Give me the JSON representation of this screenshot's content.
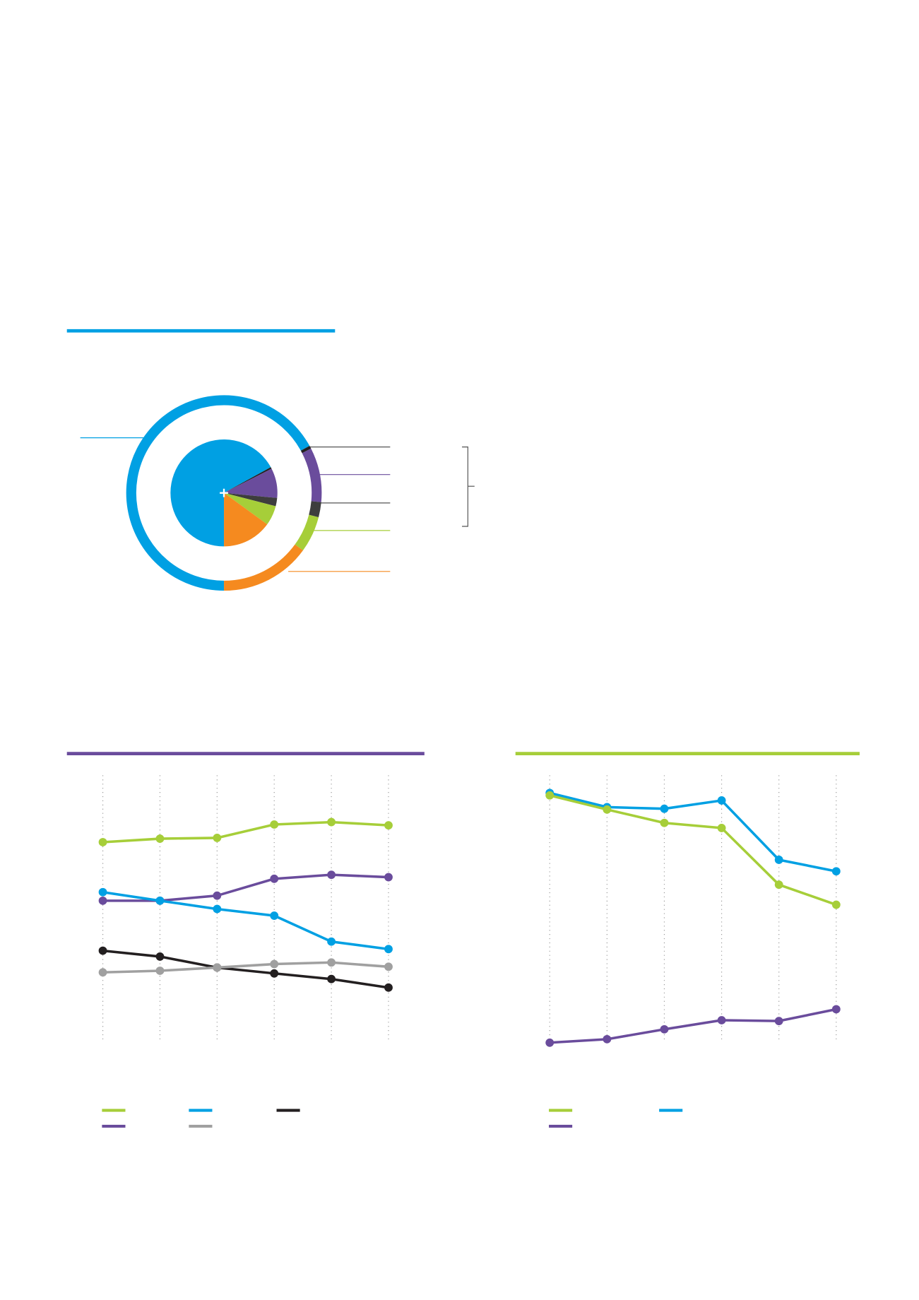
{
  "chart_data": [
    {
      "type": "pie",
      "values": [
        67,
        0.5,
        9,
        2.5,
        6,
        15
      ],
      "colors": [
        "#00a0e3",
        "#231f20",
        "#6a4c9c",
        "#3d3d3d",
        "#a6ce39",
        "#f58a1f"
      ],
      "start_angle": 180
    },
    {
      "type": "line",
      "categories": [
        null,
        null,
        null,
        null,
        null,
        null
      ],
      "ylim": [
        0,
        100
      ],
      "grid": true,
      "series": [
        {
          "color": "#a6ce39",
          "values": [
            75,
            76.3,
            76.6,
            81.6,
            82.5,
            81.3
          ]
        },
        {
          "color": "#6a4c9c",
          "values": [
            53.1,
            53.1,
            55,
            61.3,
            62.8,
            61.9
          ]
        },
        {
          "color": "#00a0e3",
          "values": [
            56.3,
            53.1,
            50,
            47.5,
            37.8,
            35
          ]
        },
        {
          "color": "#231f20",
          "values": [
            34.4,
            32.2,
            28.1,
            25.9,
            23.8,
            20.6
          ]
        },
        {
          "color": "#a0a0a0",
          "values": [
            26.3,
            26.9,
            28.1,
            29.4,
            30,
            28.4
          ]
        }
      ]
    },
    {
      "type": "line",
      "categories": [
        null,
        null,
        null,
        null,
        null,
        null
      ],
      "ylim": [
        0,
        100
      ],
      "grid": true,
      "series": [
        {
          "color": "#00a0e3",
          "values": [
            93.4,
            88.1,
            87.5,
            90.6,
            68.4,
            64.1
          ]
        },
        {
          "color": "#a6ce39",
          "values": [
            92.5,
            87.2,
            82.2,
            80.3,
            59.1,
            51.6
          ]
        },
        {
          "color": "#6a4c9c",
          "values": [
            0,
            1.3,
            5,
            8.4,
            8.1,
            12.5
          ]
        }
      ]
    }
  ]
}
